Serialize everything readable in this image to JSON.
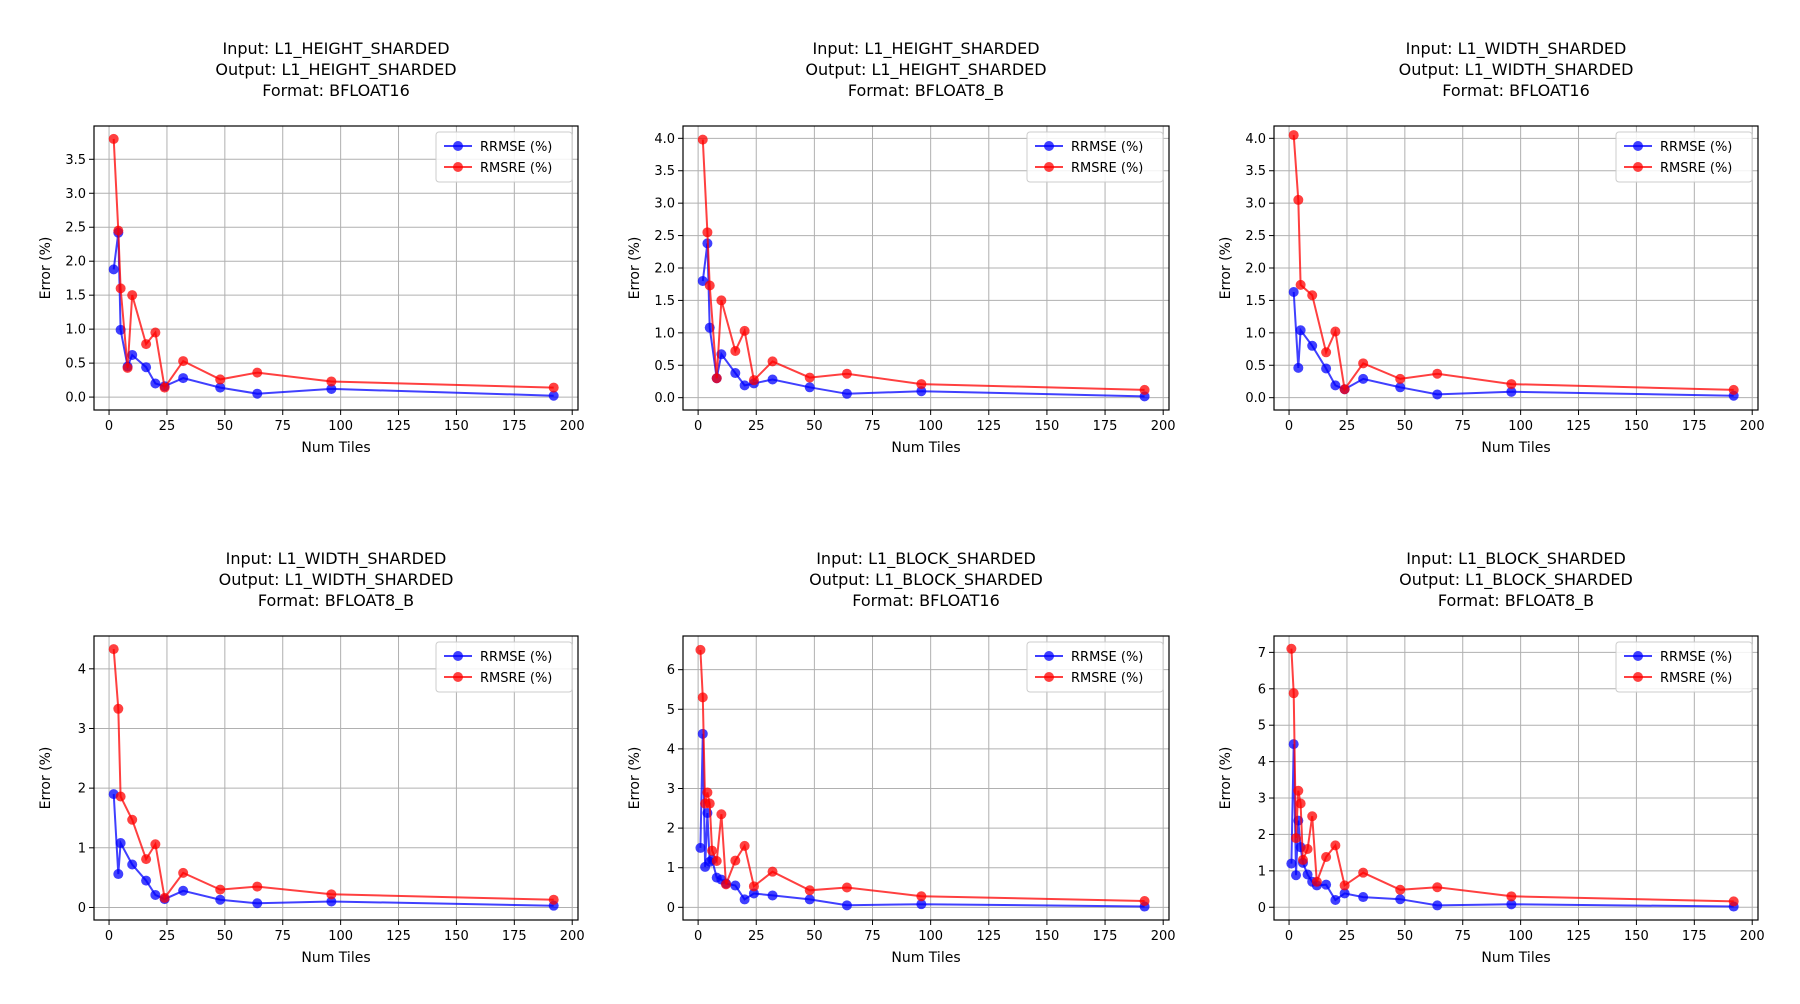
{
  "colors": {
    "RRMSE (%)": "#0000ff",
    "RMSRE (%)": "#ff0000"
  },
  "chart_data": [
    {
      "type": "line",
      "title": [
        "Input: L1_HEIGHT_SHARDED",
        "Output: L1_HEIGHT_SHARDED",
        "Format: BFLOAT16"
      ],
      "xlabel": "Num Tiles",
      "ylabel": "Error (%)",
      "xlim": [
        -6.5,
        202.5
      ],
      "ylim": [
        -0.19,
        3.99
      ],
      "xticks": [
        0,
        25,
        50,
        75,
        100,
        125,
        150,
        175,
        200
      ],
      "yticks": [
        0.0,
        0.5,
        1.0,
        1.5,
        2.0,
        2.5,
        3.0,
        3.5
      ],
      "ytick_decimals": 1,
      "grid": true,
      "legend": "upper right",
      "x": [
        2,
        4,
        5,
        8,
        10,
        16,
        20,
        24,
        32,
        48,
        64,
        96,
        192
      ],
      "series": [
        {
          "name": "RRMSE (%)",
          "values": [
            1.88,
            2.42,
            0.99,
            0.45,
            0.62,
            0.44,
            0.2,
            0.16,
            0.28,
            0.14,
            0.05,
            0.12,
            0.02
          ]
        },
        {
          "name": "RMSRE (%)",
          "values": [
            3.8,
            2.45,
            1.6,
            0.43,
            1.5,
            0.78,
            0.95,
            0.14,
            0.53,
            0.26,
            0.36,
            0.23,
            0.14
          ]
        }
      ]
    },
    {
      "type": "line",
      "title": [
        "Input: L1_HEIGHT_SHARDED",
        "Output: L1_HEIGHT_SHARDED",
        "Format: BFLOAT8_B"
      ],
      "xlabel": "Num Tiles",
      "ylabel": "Error (%)",
      "xlim": [
        -6.5,
        202.5
      ],
      "ylim": [
        -0.19,
        4.19
      ],
      "xticks": [
        0,
        25,
        50,
        75,
        100,
        125,
        150,
        175,
        200
      ],
      "yticks": [
        0.0,
        0.5,
        1.0,
        1.5,
        2.0,
        2.5,
        3.0,
        3.5,
        4.0
      ],
      "ytick_decimals": 1,
      "grid": true,
      "legend": "upper right",
      "x": [
        2,
        4,
        5,
        8,
        10,
        16,
        20,
        24,
        32,
        48,
        64,
        96,
        192
      ],
      "series": [
        {
          "name": "RRMSE (%)",
          "values": [
            1.8,
            2.38,
            1.08,
            0.3,
            0.67,
            0.38,
            0.19,
            0.22,
            0.28,
            0.16,
            0.06,
            0.1,
            0.02
          ]
        },
        {
          "name": "RMSRE (%)",
          "values": [
            3.98,
            2.55,
            1.73,
            0.3,
            1.5,
            0.72,
            1.03,
            0.27,
            0.56,
            0.31,
            0.37,
            0.21,
            0.12
          ]
        }
      ]
    },
    {
      "type": "line",
      "title": [
        "Input: L1_WIDTH_SHARDED",
        "Output: L1_WIDTH_SHARDED",
        "Format: BFLOAT16"
      ],
      "xlabel": "Num Tiles",
      "ylabel": "Error (%)",
      "xlim": [
        -6.5,
        202.5
      ],
      "ylim": [
        -0.19,
        4.19
      ],
      "xticks": [
        0,
        25,
        50,
        75,
        100,
        125,
        150,
        175,
        200
      ],
      "yticks": [
        0.0,
        0.5,
        1.0,
        1.5,
        2.0,
        2.5,
        3.0,
        3.5,
        4.0
      ],
      "ytick_decimals": 1,
      "grid": true,
      "legend": "upper right",
      "x": [
        2,
        4,
        5,
        10,
        16,
        20,
        24,
        32,
        48,
        64,
        96,
        192
      ],
      "series": [
        {
          "name": "RRMSE (%)",
          "values": [
            1.63,
            0.46,
            1.04,
            0.8,
            0.45,
            0.19,
            0.13,
            0.29,
            0.16,
            0.05,
            0.09,
            0.03
          ]
        },
        {
          "name": "RMSRE (%)",
          "values": [
            4.05,
            3.05,
            1.74,
            1.58,
            0.7,
            1.02,
            0.13,
            0.53,
            0.29,
            0.37,
            0.21,
            0.12
          ]
        }
      ]
    },
    {
      "type": "line",
      "title": [
        "Input: L1_WIDTH_SHARDED",
        "Output: L1_WIDTH_SHARDED",
        "Format: BFLOAT8_B"
      ],
      "xlabel": "Num Tiles",
      "ylabel": "Error (%)",
      "xlim": [
        -6.5,
        202.5
      ],
      "ylim": [
        -0.21,
        4.55
      ],
      "xticks": [
        0,
        25,
        50,
        75,
        100,
        125,
        150,
        175,
        200
      ],
      "yticks": [
        0,
        1,
        2,
        3,
        4
      ],
      "ytick_decimals": 0,
      "grid": true,
      "legend": "upper right",
      "x": [
        2,
        4,
        5,
        10,
        16,
        20,
        24,
        32,
        48,
        64,
        96,
        192
      ],
      "series": [
        {
          "name": "RRMSE (%)",
          "values": [
            1.9,
            0.56,
            1.08,
            0.72,
            0.45,
            0.21,
            0.14,
            0.28,
            0.13,
            0.07,
            0.1,
            0.03
          ]
        },
        {
          "name": "RMSRE (%)",
          "values": [
            4.33,
            3.33,
            1.86,
            1.47,
            0.81,
            1.06,
            0.16,
            0.58,
            0.3,
            0.35,
            0.22,
            0.13
          ]
        }
      ]
    },
    {
      "type": "line",
      "title": [
        "Input: L1_BLOCK_SHARDED",
        "Output: L1_BLOCK_SHARDED",
        "Format: BFLOAT16"
      ],
      "xlabel": "Num Tiles",
      "ylabel": "Error (%)",
      "xlim": [
        -6.5,
        202.5
      ],
      "ylim": [
        -0.32,
        6.85
      ],
      "xticks": [
        0,
        25,
        50,
        75,
        100,
        125,
        150,
        175,
        200
      ],
      "yticks": [
        0,
        1,
        2,
        3,
        4,
        5,
        6
      ],
      "ytick_decimals": 0,
      "grid": true,
      "legend": "upper right",
      "x": [
        1,
        2,
        3,
        4,
        5,
        6,
        8,
        10,
        12,
        16,
        20,
        24,
        32,
        48,
        64,
        96,
        192
      ],
      "series": [
        {
          "name": "RRMSE (%)",
          "values": [
            1.5,
            4.38,
            1.02,
            2.38,
            1.15,
            1.2,
            0.75,
            0.7,
            0.6,
            0.55,
            0.2,
            0.35,
            0.3,
            0.2,
            0.05,
            0.08,
            0.02
          ]
        },
        {
          "name": "RMSRE (%)",
          "values": [
            6.5,
            5.3,
            2.62,
            2.9,
            2.62,
            1.43,
            1.17,
            2.35,
            0.58,
            1.18,
            1.55,
            0.53,
            0.9,
            0.43,
            0.5,
            0.28,
            0.16
          ]
        }
      ]
    },
    {
      "type": "line",
      "title": [
        "Input: L1_BLOCK_SHARDED",
        "Output: L1_BLOCK_SHARDED",
        "Format: BFLOAT8_B"
      ],
      "xlabel": "Num Tiles",
      "ylabel": "Error (%)",
      "xlim": [
        -6.5,
        202.5
      ],
      "ylim": [
        -0.35,
        7.45
      ],
      "xticks": [
        0,
        25,
        50,
        75,
        100,
        125,
        150,
        175,
        200
      ],
      "yticks": [
        0,
        1,
        2,
        3,
        4,
        5,
        6,
        7
      ],
      "ytick_decimals": 0,
      "grid": true,
      "legend": "upper right",
      "x": [
        1,
        2,
        3,
        4,
        5,
        6,
        8,
        10,
        12,
        16,
        20,
        24,
        32,
        48,
        64,
        96,
        192
      ],
      "series": [
        {
          "name": "RRMSE (%)",
          "values": [
            1.2,
            4.48,
            0.88,
            2.38,
            1.65,
            1.22,
            0.9,
            0.7,
            0.6,
            0.62,
            0.2,
            0.38,
            0.28,
            0.22,
            0.05,
            0.08,
            0.02
          ]
        },
        {
          "name": "RMSRE (%)",
          "values": [
            7.1,
            5.88,
            1.9,
            3.2,
            2.85,
            1.3,
            1.6,
            2.5,
            0.7,
            1.38,
            1.7,
            0.6,
            0.95,
            0.48,
            0.55,
            0.3,
            0.16
          ]
        }
      ]
    }
  ]
}
